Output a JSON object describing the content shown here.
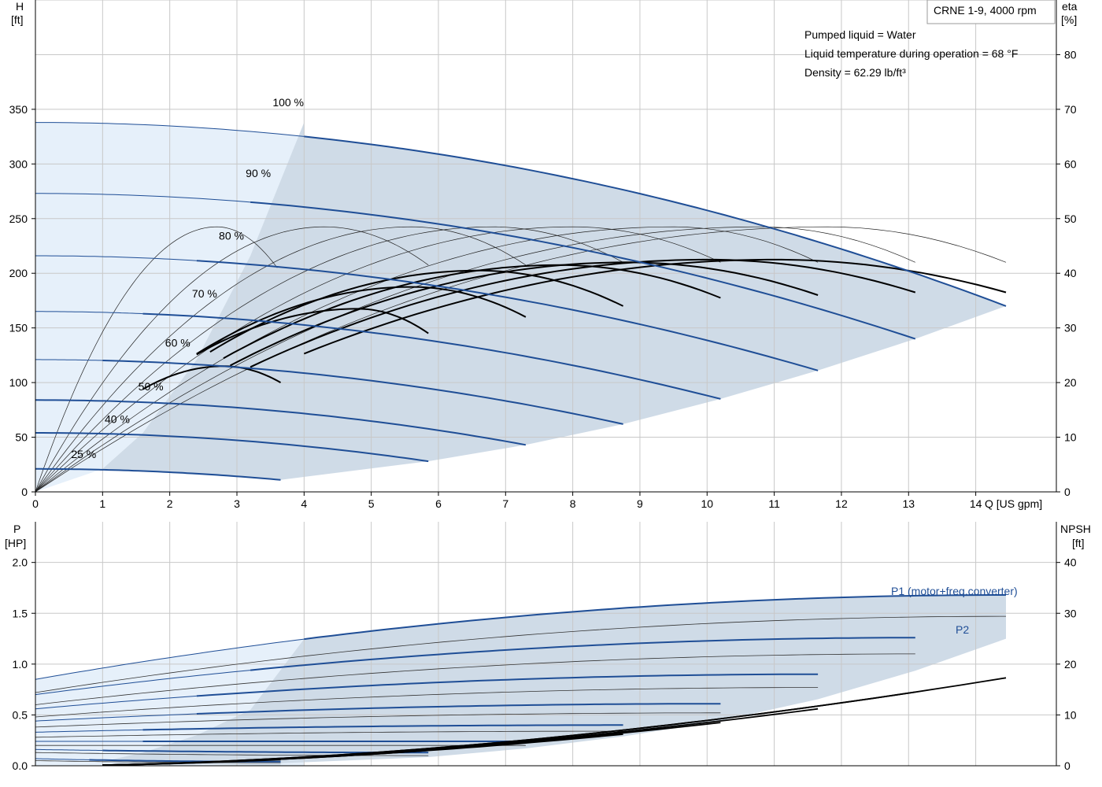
{
  "chart_data": [
    {
      "type": "line",
      "title": "CRNE 1-9, 4000 rpm",
      "annotations": [
        "Pumped liquid = Water",
        "Liquid temperature during operation = 68 °F",
        "Density = 62.29 lb/ft³"
      ],
      "xlabel": "Q [US gpm]",
      "ylabel_left": [
        "H",
        "[ft]"
      ],
      "ylabel_right": [
        "eta",
        "[%]"
      ],
      "xlim": [
        0,
        15.2
      ],
      "ylim_left": [
        0,
        450
      ],
      "ylim_right": [
        0,
        90
      ],
      "xticks": [
        0,
        1,
        2,
        3,
        4,
        5,
        6,
        7,
        8,
        9,
        10,
        11,
        12,
        13,
        14
      ],
      "yticks_left": [
        0,
        50,
        100,
        150,
        200,
        250,
        300,
        350
      ],
      "yticks_right": [
        0,
        10,
        20,
        30,
        40,
        50,
        60,
        70,
        80
      ],
      "grid": true,
      "colors": {
        "curve": "#1f4e96",
        "region": "#cfdbe7",
        "region_light": "#e6f0fa",
        "eff": "#000000",
        "grid": "#c8c8c8"
      },
      "head_curves": [
        {
          "speed": "100 %",
          "shutoff": 338,
          "qmax": 14.45,
          "hend": 170,
          "label_at": [
            4.0,
            350
          ]
        },
        {
          "speed": "90 %",
          "shutoff": 273,
          "qmax": 13.1,
          "hend": 140,
          "label_at": [
            3.6,
            285
          ]
        },
        {
          "speed": "80 %",
          "shutoff": 216,
          "qmax": 11.65,
          "hend": 111,
          "label_at": [
            3.2,
            228
          ]
        },
        {
          "speed": "70 %",
          "shutoff": 165,
          "qmax": 10.2,
          "hend": 85,
          "label_at": [
            2.8,
            175
          ]
        },
        {
          "speed": "60 %",
          "shutoff": 121,
          "qmax": 8.75,
          "hend": 62,
          "label_at": [
            2.4,
            130
          ]
        },
        {
          "speed": "50 %",
          "shutoff": 84,
          "qmax": 7.3,
          "hend": 43,
          "label_at": [
            2.0,
            90
          ]
        },
        {
          "speed": "40 %",
          "shutoff": 54,
          "qmax": 5.85,
          "hend": 28,
          "label_at": [
            1.5,
            60
          ]
        },
        {
          "speed": "25 %",
          "shutoff": 21,
          "qmax": 3.65,
          "hend": 11,
          "label_at": [
            1.0,
            28
          ]
        }
      ],
      "operating_region_head": {
        "left_boundary": [
          [
            1.0,
            21
          ],
          [
            1.6,
            54
          ],
          [
            2.4,
            121
          ],
          [
            3.2,
            216
          ],
          [
            4.0,
            338
          ]
        ],
        "right_boundary": [
          [
            3.65,
            11
          ],
          [
            5.85,
            28
          ],
          [
            7.3,
            43
          ],
          [
            8.75,
            62
          ],
          [
            10.2,
            85
          ],
          [
            11.65,
            111
          ],
          [
            13.1,
            140
          ],
          [
            14.45,
            170
          ]
        ]
      },
      "efficiency_curves": [
        {
          "qstart": 1.6,
          "qpeak": 2.8,
          "qend": 3.65,
          "peak": 23,
          "end": 20
        },
        {
          "qstart": 2.4,
          "qpeak": 4.8,
          "qend": 5.85,
          "peak": 33.5,
          "end": 29
        },
        {
          "qstart": 2.4,
          "qpeak": 5.6,
          "qend": 7.3,
          "peak": 37.5,
          "end": 32
        },
        {
          "qstart": 2.6,
          "qpeak": 6.6,
          "qend": 8.75,
          "peak": 40.5,
          "end": 34
        },
        {
          "qstart": 2.8,
          "qpeak": 7.8,
          "qend": 10.2,
          "peak": 41.5,
          "end": 35.5
        },
        {
          "qstart": 2.9,
          "qpeak": 8.8,
          "qend": 11.65,
          "peak": 42,
          "end": 36
        },
        {
          "qstart": 3.2,
          "qpeak": 10.0,
          "qend": 13.1,
          "peak": 42.5,
          "end": 36.5
        },
        {
          "qstart": 4.0,
          "qpeak": 11.0,
          "qend": 14.45,
          "peak": 42.5,
          "end": 36.5
        }
      ],
      "eff_reference_arcs": [
        {
          "qend": 3.6,
          "qpeak": 2.7,
          "peak": 48.5,
          "end": 41
        },
        {
          "qend": 5.85,
          "qpeak": 4.3,
          "peak": 48.5,
          "end": 41.5
        },
        {
          "qend": 7.3,
          "qpeak": 5.6,
          "peak": 48.5,
          "end": 41.5
        },
        {
          "qend": 8.75,
          "qpeak": 6.8,
          "peak": 48.5,
          "end": 42
        },
        {
          "qend": 10.2,
          "qpeak": 8.0,
          "peak": 48.5,
          "end": 42
        },
        {
          "qend": 11.65,
          "qpeak": 9.5,
          "peak": 48.5,
          "end": 42
        },
        {
          "qend": 13.1,
          "qpeak": 10.8,
          "peak": 48.5,
          "end": 42
        },
        {
          "qend": 14.45,
          "qpeak": 11.8,
          "peak": 48.5,
          "end": 42
        }
      ]
    },
    {
      "type": "line",
      "xlabel": "",
      "ylabel_left": [
        "P",
        "[HP]"
      ],
      "ylabel_right": [
        "NPSH",
        "[ft]"
      ],
      "xlim": [
        0,
        15.2
      ],
      "ylim_left": [
        0,
        2.4
      ],
      "ylim_right": [
        0,
        48
      ],
      "yticks_left": [
        "0.0",
        "0.5",
        "1.0",
        "1.5",
        "2.0"
      ],
      "yticks_right": [
        0,
        10,
        20,
        30,
        40
      ],
      "grid": true,
      "series_labels": [
        "P1 (motor+freq.converter)",
        "P2"
      ],
      "p1_curves": [
        {
          "speed": "100 %",
          "shutoff": 0.85,
          "qmax": 14.45,
          "pmax": 1.68
        },
        {
          "speed": "90 %",
          "shutoff": 0.7,
          "qmax": 13.1,
          "pmax": 1.26
        },
        {
          "speed": "80 %",
          "shutoff": 0.56,
          "qmax": 11.65,
          "pmax": 0.9
        },
        {
          "speed": "70 %",
          "shutoff": 0.44,
          "qmax": 10.2,
          "pmax": 0.61
        },
        {
          "speed": "60 %",
          "shutoff": 0.33,
          "qmax": 8.75,
          "pmax": 0.4
        },
        {
          "speed": "50 %",
          "shutoff": 0.24,
          "qmax": 7.3,
          "pmax": 0.24
        },
        {
          "speed": "40 %",
          "shutoff": 0.16,
          "qmax": 5.85,
          "pmax": 0.13
        },
        {
          "speed": "25 %",
          "shutoff": 0.07,
          "qmax": 3.65,
          "pmax": 0.04
        }
      ],
      "p2_curves": [
        {
          "speed": "100 %",
          "shutoff": 0.72,
          "qmax": 14.45,
          "pmax": 1.47
        },
        {
          "speed": "90 %",
          "shutoff": 0.6,
          "qmax": 13.1,
          "pmax": 1.1
        },
        {
          "speed": "80 %",
          "shutoff": 0.48,
          "qmax": 11.65,
          "pmax": 0.77
        },
        {
          "speed": "70 %",
          "shutoff": 0.38,
          "qmax": 10.2,
          "pmax": 0.52
        },
        {
          "speed": "60 %",
          "shutoff": 0.28,
          "qmax": 8.75,
          "pmax": 0.34
        },
        {
          "speed": "50 %",
          "shutoff": 0.2,
          "qmax": 7.3,
          "pmax": 0.2
        },
        {
          "speed": "40 %",
          "shutoff": 0.13,
          "qmax": 5.85,
          "pmax": 0.1
        },
        {
          "speed": "25 %",
          "shutoff": 0.05,
          "qmax": 3.65,
          "pmax": 0.03
        }
      ],
      "npsh_curves": [
        {
          "qmax": 14.45,
          "npsh_end": 17.3
        },
        {
          "qmax": 13.1,
          "npsh_end": 14.5
        },
        {
          "qmax": 11.65,
          "npsh_end": 11.2
        },
        {
          "qmax": 10.2,
          "npsh_end": 8.5
        },
        {
          "qmax": 8.75,
          "npsh_end": 6.2
        },
        {
          "qmax": 7.3,
          "npsh_end": 4.6
        },
        {
          "qmax": 5.85,
          "npsh_end": 3.0
        },
        {
          "qmax": 3.65,
          "npsh_end": 1.2
        }
      ]
    }
  ]
}
